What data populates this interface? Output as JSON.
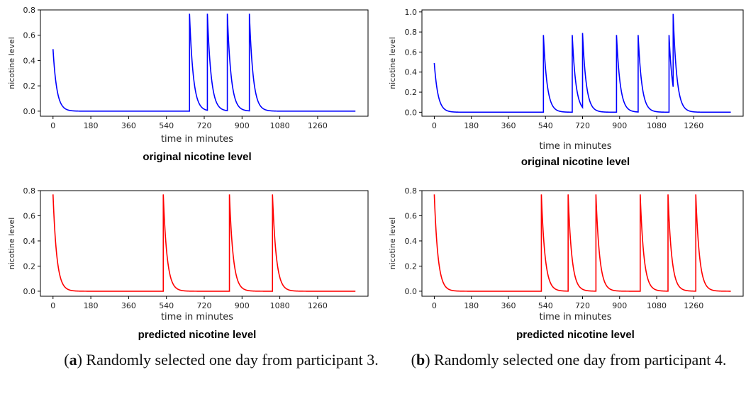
{
  "chart_data": [
    {
      "id": "a-top",
      "type": "line",
      "xlabel": "time in minutes",
      "ylabel": "nicotine level",
      "subtitle": "original nicotine level",
      "color": "#0000ff",
      "xlim": [
        -60,
        1500
      ],
      "ylim": [
        -0.04,
        0.8
      ],
      "xticks": [
        0,
        180,
        360,
        540,
        720,
        900,
        1080,
        1260
      ],
      "yticks": [
        0.0,
        0.2,
        0.4,
        0.6,
        0.8
      ],
      "ytick_labels": [
        "0.0",
        "0.2",
        "0.4",
        "0.6",
        "0.8"
      ],
      "start": {
        "x": 0,
        "y": 0.49
      },
      "spikes": [
        {
          "x": 650,
          "y": 0.77
        },
        {
          "x": 735,
          "y": 0.77
        },
        {
          "x": 830,
          "y": 0.77
        },
        {
          "x": 935,
          "y": 0.77
        }
      ],
      "x_end": 1440
    },
    {
      "id": "a-bottom",
      "type": "line",
      "xlabel": "time in minutes",
      "ylabel": "nicotine level",
      "subtitle": "predicted nicotine level",
      "color": "#ff0000",
      "xlim": [
        -60,
        1500
      ],
      "ylim": [
        -0.04,
        0.8
      ],
      "xticks": [
        0,
        180,
        360,
        540,
        720,
        900,
        1080,
        1260
      ],
      "yticks": [
        0.0,
        0.2,
        0.4,
        0.6,
        0.8
      ],
      "ytick_labels": [
        "0.0",
        "0.2",
        "0.4",
        "0.6",
        "0.8"
      ],
      "start": {
        "x": 0,
        "y": 0.77
      },
      "spikes": [
        {
          "x": 525,
          "y": 0.77
        },
        {
          "x": 840,
          "y": 0.77
        },
        {
          "x": 1045,
          "y": 0.77
        }
      ],
      "x_end": 1440
    },
    {
      "id": "b-top",
      "type": "line",
      "xlabel": "time in minutes",
      "ylabel": "nicotine level",
      "subtitle": "original nicotine level",
      "color": "#0000ff",
      "xlim": [
        -60,
        1500
      ],
      "ylim": [
        -0.04,
        1.02
      ],
      "xticks": [
        0,
        180,
        360,
        540,
        720,
        900,
        1080,
        1260
      ],
      "yticks": [
        0.0,
        0.2,
        0.4,
        0.6,
        0.8,
        1.0
      ],
      "ytick_labels": [
        "0.0",
        "0.2",
        "0.4",
        "0.6",
        "0.8",
        "1.0"
      ],
      "start": {
        "x": 0,
        "y": 0.49
      },
      "spikes": [
        {
          "x": 530,
          "y": 0.77
        },
        {
          "x": 670,
          "y": 0.77
        },
        {
          "x": 720,
          "y": 0.79
        },
        {
          "x": 885,
          "y": 0.77
        },
        {
          "x": 990,
          "y": 0.77
        },
        {
          "x": 1140,
          "y": 0.77
        },
        {
          "x": 1160,
          "y": 0.98
        }
      ],
      "x_end": 1440
    },
    {
      "id": "b-bottom",
      "type": "line",
      "xlabel": "time in minutes",
      "ylabel": "nicotine level",
      "subtitle": "predicted nicotine level",
      "color": "#ff0000",
      "xlim": [
        -60,
        1500
      ],
      "ylim": [
        -0.04,
        0.8
      ],
      "xticks": [
        0,
        180,
        360,
        540,
        720,
        900,
        1080,
        1260
      ],
      "yticks": [
        0.0,
        0.2,
        0.4,
        0.6,
        0.8
      ],
      "ytick_labels": [
        "0.0",
        "0.2",
        "0.4",
        "0.6",
        "0.8"
      ],
      "start": {
        "x": 0,
        "y": 0.77
      },
      "spikes": [
        {
          "x": 520,
          "y": 0.77
        },
        {
          "x": 650,
          "y": 0.77
        },
        {
          "x": 785,
          "y": 0.77
        },
        {
          "x": 1000,
          "y": 0.77
        },
        {
          "x": 1135,
          "y": 0.77
        },
        {
          "x": 1270,
          "y": 0.77
        }
      ],
      "x_end": 1440
    }
  ],
  "captions": {
    "a": {
      "letter": "a",
      "text": " Randomly selected one day from participant 3."
    },
    "b": {
      "letter": "b",
      "text": " Randomly selected one day from participant 4."
    }
  }
}
